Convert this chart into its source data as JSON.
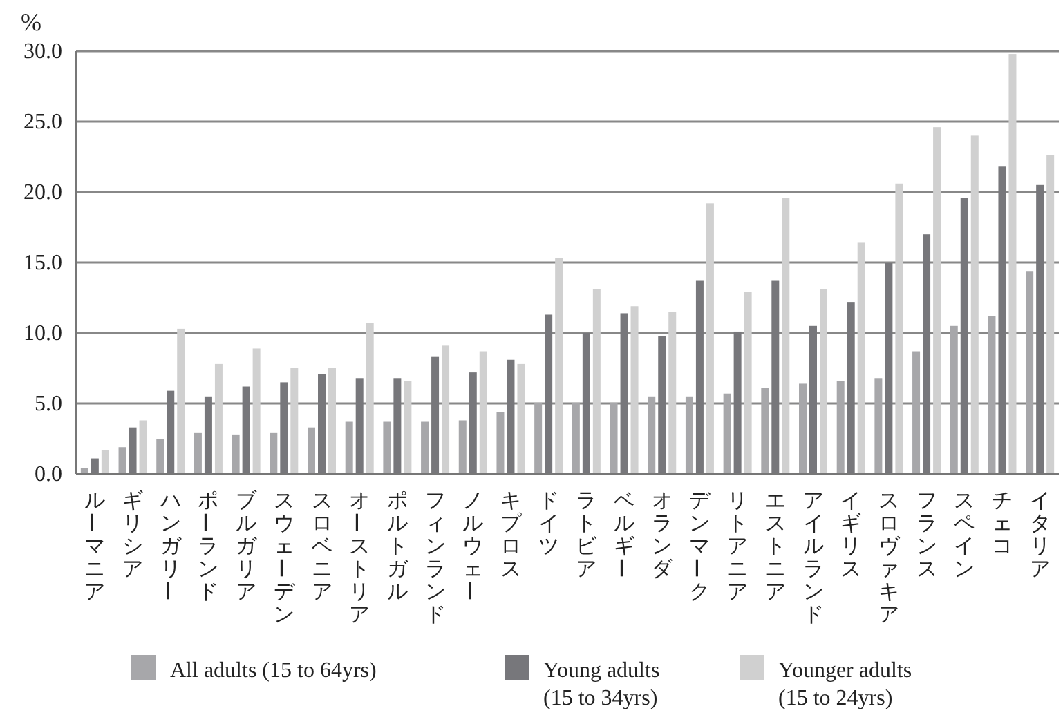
{
  "chart_data": {
    "type": "bar",
    "ylabel": "%",
    "categories": [
      "ルーマニア",
      "ギリシア",
      "ハンガリー",
      "ポーランド",
      "ブルガリア",
      "スウェーデン",
      "スロベニア",
      "オーストリア",
      "ポルトガル",
      "フィンランド",
      "ノルウェー",
      "キプロス",
      "ドイツ",
      "ラトビア",
      "ベルギー",
      "オランダ",
      "デンマーク",
      "リトアニア",
      "エストニア",
      "アイルランド",
      "イギリス",
      "スロヴァキア",
      "フランス",
      "スペイン",
      "チェコ",
      "イタリア"
    ],
    "series": [
      {
        "name": "All adults (15 to 64yrs)",
        "color": "#a7a7aa",
        "values": [
          0.4,
          1.9,
          2.5,
          2.9,
          2.8,
          2.9,
          3.3,
          3.7,
          3.7,
          3.7,
          3.8,
          4.4,
          5.0,
          5.0,
          5.0,
          5.5,
          5.5,
          5.7,
          6.1,
          6.4,
          6.6,
          6.8,
          8.7,
          10.5,
          11.2,
          14.4
        ]
      },
      {
        "name": "Young adults (15 to 34yrs)",
        "color": "#77777b",
        "values": [
          1.1,
          3.3,
          5.9,
          5.5,
          6.2,
          6.5,
          7.1,
          6.8,
          6.8,
          8.3,
          7.2,
          8.1,
          11.3,
          10.0,
          11.4,
          9.8,
          13.7,
          10.1,
          13.7,
          10.5,
          12.2,
          15.0,
          17.0,
          19.6,
          21.8,
          20.5
        ]
      },
      {
        "name": "Younger adults (15 to 24yrs)",
        "color": "#d0d0d0",
        "values": [
          1.7,
          3.8,
          10.3,
          7.8,
          8.9,
          7.5,
          7.5,
          10.7,
          6.6,
          9.1,
          8.7,
          7.8,
          15.3,
          13.1,
          11.9,
          11.5,
          19.2,
          12.9,
          19.6,
          13.1,
          16.4,
          20.6,
          24.6,
          24.0,
          29.8,
          22.6
        ]
      }
    ],
    "ylim": [
      0,
      30
    ],
    "yticks": [
      {
        "value": 0,
        "label": "0.0"
      },
      {
        "value": 5,
        "label": "5.0"
      },
      {
        "value": 10,
        "label": "10.0"
      },
      {
        "value": 15,
        "label": "15.0"
      },
      {
        "value": 20,
        "label": "20.0"
      },
      {
        "value": 25,
        "label": "25.0"
      },
      {
        "value": 30,
        "label": "30.0"
      }
    ],
    "grid": "y",
    "legend": "bottom"
  }
}
